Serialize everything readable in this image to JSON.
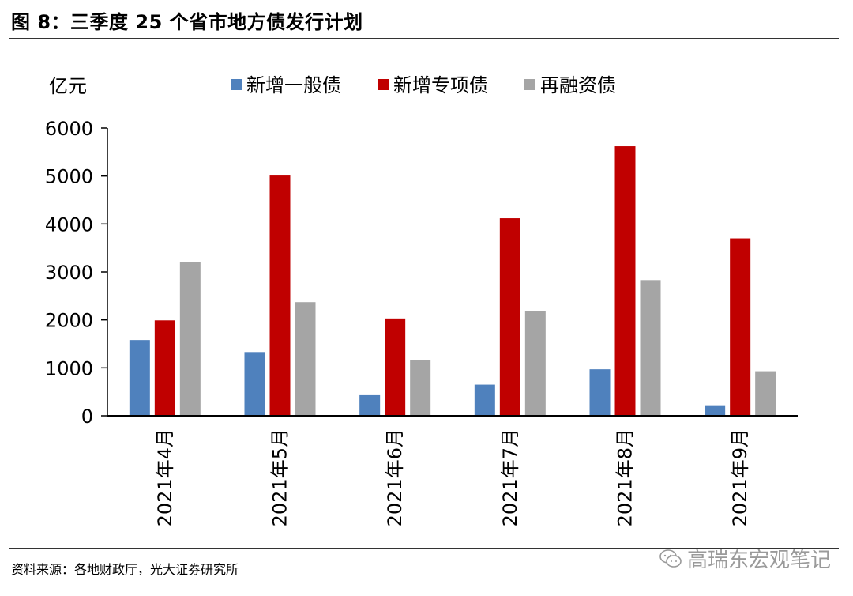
{
  "title": "图 8：三季度 25 个省市地方债发行计划",
  "source": "资料来源：各地财政厅，光大证券研究所",
  "watermark": "高瑞东宏观笔记",
  "chart_data": {
    "type": "bar",
    "ylabel": "亿元",
    "ylim": [
      0,
      6000
    ],
    "yticks": [
      "6000",
      "5000",
      "4000",
      "3000",
      "2000",
      "1000",
      "0"
    ],
    "categories": [
      "2021年4月",
      "2021年5月",
      "2021年6月",
      "2021年7月",
      "2021年8月",
      "2021年9月"
    ],
    "series": [
      {
        "name": "新增一般债",
        "color": "#4f81bd",
        "values": [
          1580,
          1330,
          430,
          650,
          970,
          220
        ]
      },
      {
        "name": "新增专项债",
        "color": "#c00000",
        "values": [
          1990,
          5010,
          2030,
          4120,
          5620,
          3700
        ]
      },
      {
        "name": "再融资债",
        "color": "#a5a5a5",
        "values": [
          3200,
          2370,
          1170,
          2190,
          2830,
          930
        ]
      }
    ],
    "legend_position": "top-center",
    "grid": false
  }
}
